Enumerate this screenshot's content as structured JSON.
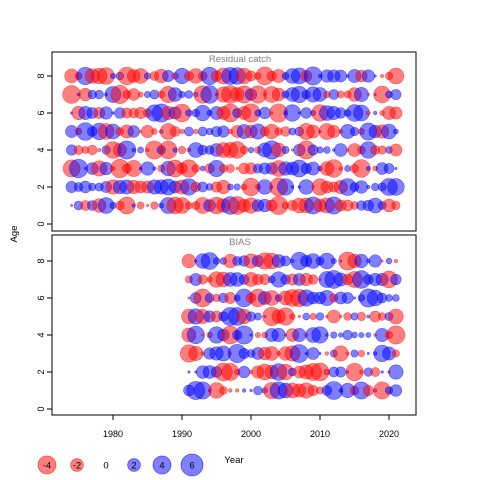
{
  "chart_data": {
    "type": "scatter",
    "ylabel": "Age",
    "xlabel": "Year",
    "x_ticks": [
      1980,
      1990,
      2000,
      2010,
      2020
    ],
    "xlim": [
      1972,
      2024
    ],
    "y_ticks": [
      0,
      2,
      4,
      6,
      8
    ],
    "ylim": [
      -0.5,
      8.8
    ],
    "colors": {
      "negative": "#ff0000",
      "positive": "#0000ff"
    },
    "panels": [
      {
        "title": "Residual catch",
        "year_start": 1974,
        "year_end": 2021,
        "ages": [
          1,
          2,
          3,
          4,
          5,
          6,
          7,
          8
        ]
      },
      {
        "title": "BIAS",
        "year_start": 1991,
        "year_end": 2021,
        "ages": [
          1,
          2,
          3,
          4,
          5,
          6,
          7,
          8
        ]
      }
    ],
    "legend": {
      "values": [
        -4,
        -2,
        0,
        2,
        4,
        6
      ],
      "labels": [
        "-4",
        "-2",
        "0",
        "2",
        "4",
        "6"
      ]
    }
  }
}
